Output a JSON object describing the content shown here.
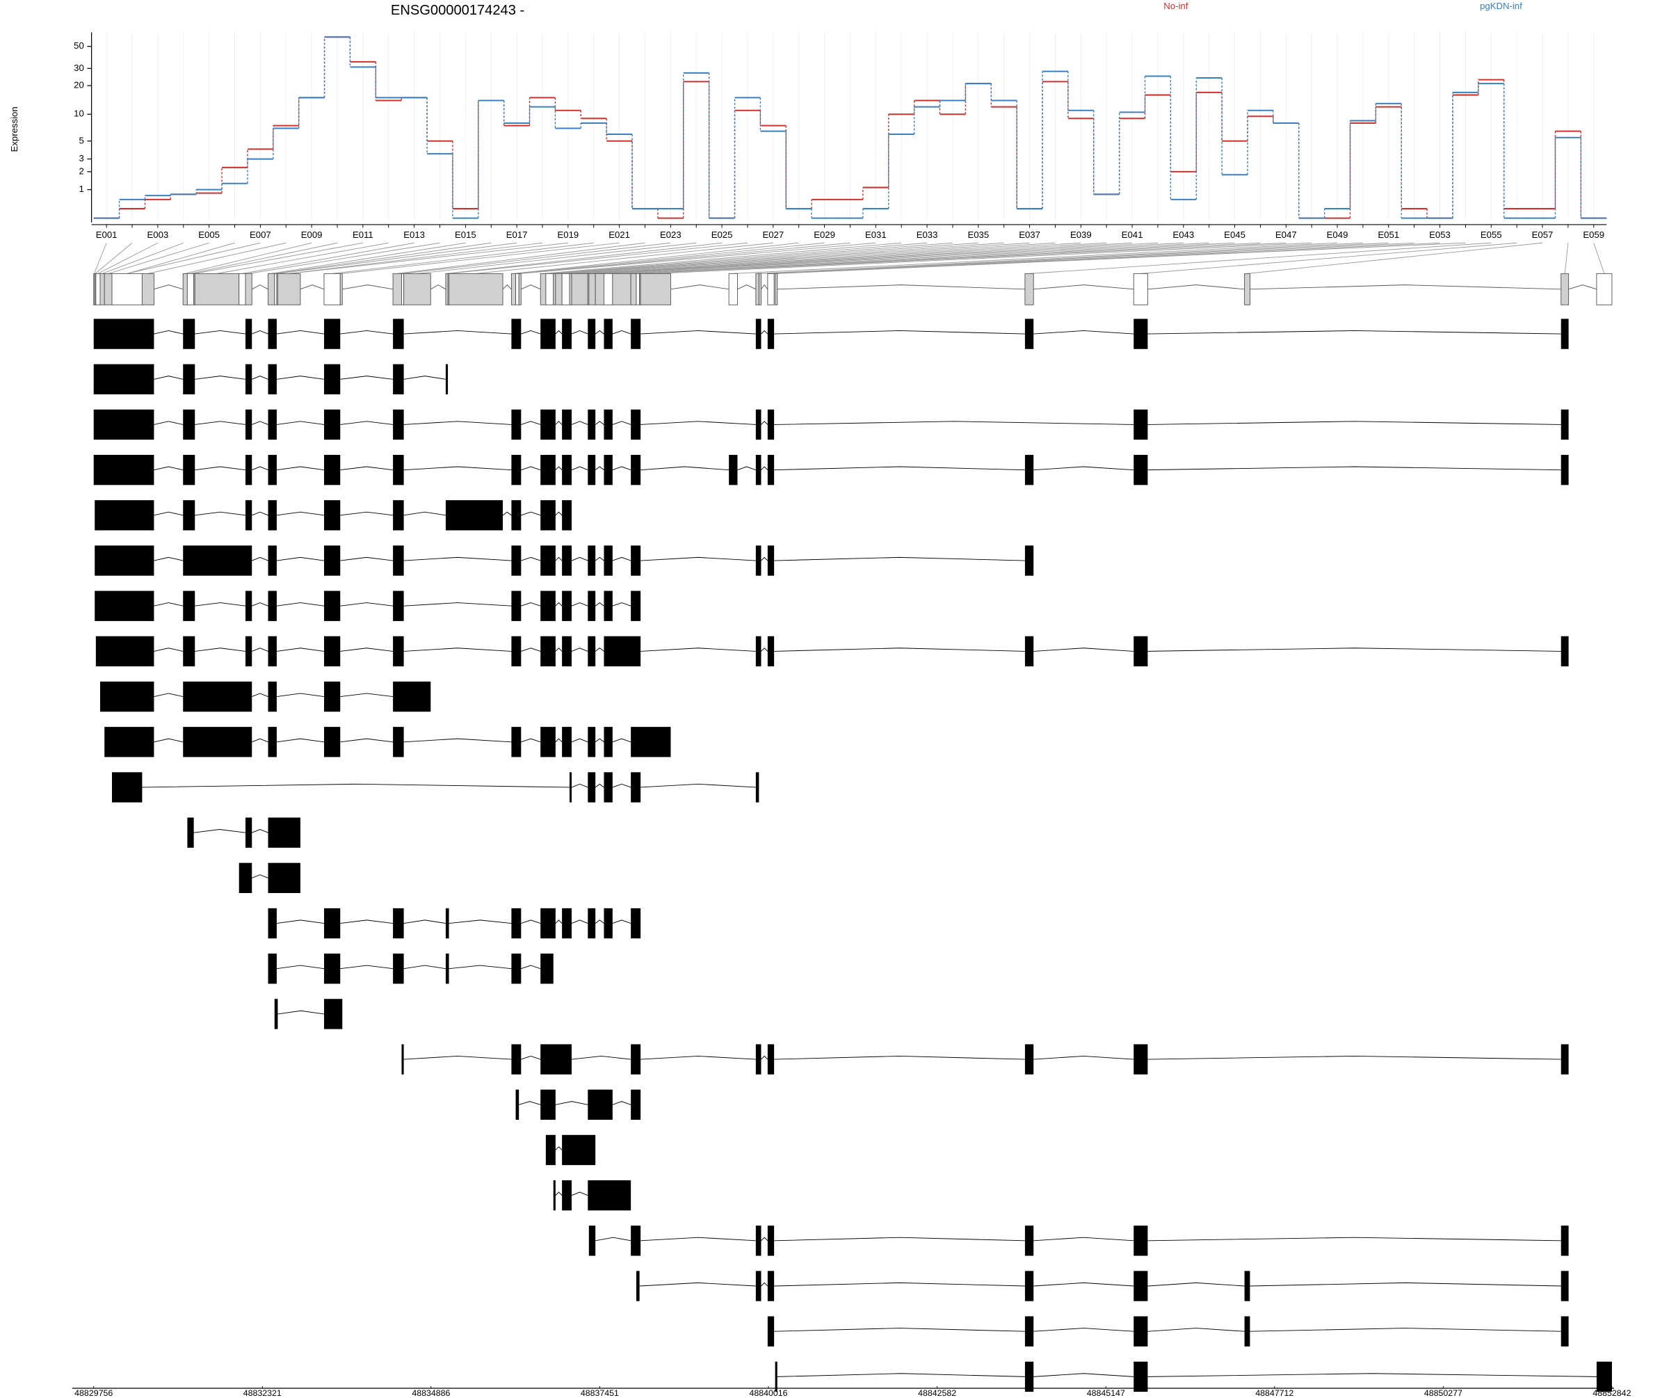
{
  "chart_data": {
    "type": "line",
    "title": "ENSG00000174243 -",
    "y_label": "Expression",
    "yscale": "log1p",
    "ylim": [
      0,
      69
    ],
    "yticks": [
      1,
      2,
      3,
      5,
      10,
      20,
      30,
      50
    ],
    "grid": true,
    "categories": [
      "E001",
      null,
      "E003",
      null,
      "E005",
      null,
      "E007",
      null,
      "E009",
      null,
      "E011",
      null,
      "E013",
      null,
      "E015",
      null,
      "E017",
      null,
      "E019",
      null,
      "E021",
      null,
      "E023",
      null,
      "E025",
      null,
      "E027",
      null,
      "E029",
      null,
      "E031",
      null,
      "E033",
      null,
      "E035",
      null,
      "E037",
      null,
      "E039",
      null,
      "E041",
      null,
      "E043",
      null,
      "E045",
      null,
      "E047",
      null,
      "E049",
      null,
      "E051",
      null,
      "E053",
      null,
      "E055",
      null,
      "E057",
      null,
      "E059"
    ],
    "series": [
      {
        "name": "No-inf",
        "color": "#d0312d",
        "values": [
          0.05,
          0.3,
          0.6,
          0.8,
          0.85,
          2.3,
          4,
          7.5,
          15,
          62,
          35,
          14,
          15,
          5,
          0.3,
          14,
          7.5,
          15,
          11,
          9,
          5,
          0.3,
          0.05,
          22,
          0.05,
          11,
          7.5,
          0.3,
          0.6,
          0.6,
          1.1,
          10,
          14,
          10,
          21,
          12,
          0.3,
          22,
          9,
          0.8,
          9,
          16,
          2,
          17,
          5,
          9.5,
          8,
          0.05,
          0.05,
          8,
          12,
          0.3,
          0.05,
          16,
          23,
          0.3,
          0.3,
          6.5,
          0.05
        ]
      },
      {
        "name": "pgKDN-inf",
        "color": "#3a80c0",
        "values": [
          0.05,
          0.6,
          0.75,
          0.8,
          1.0,
          1.3,
          3,
          7,
          15,
          62,
          31,
          15,
          15,
          3.5,
          0.05,
          14,
          8,
          12,
          7,
          8,
          6,
          0.3,
          0.3,
          27,
          0.05,
          15,
          6.5,
          0.3,
          0.05,
          0.05,
          0.3,
          6,
          12,
          14,
          21,
          14,
          0.3,
          28,
          11,
          0.8,
          10.5,
          25,
          0.6,
          24,
          1.8,
          11,
          8,
          0.05,
          0.3,
          8.5,
          13,
          0.05,
          0.05,
          17,
          21,
          0.05,
          0.05,
          5.5,
          0.05
        ]
      }
    ],
    "xlim": [
      48829756,
      48852842
    ],
    "xticks": [
      48829756,
      48832321,
      48834886,
      48837451,
      48840016,
      48842582,
      48845147,
      48847712,
      48850277,
      48852842
    ],
    "transcripts": [
      [
        [
          48829756,
          48830673
        ],
        [
          48831115,
          48831295
        ],
        [
          48832064,
          48832162
        ],
        [
          48832408,
          48832539
        ],
        [
          48833259,
          48833505
        ],
        [
          48834307,
          48834471
        ],
        [
          48836108,
          48836255
        ],
        [
          48836550,
          48836779
        ],
        [
          48836877,
          48837024
        ],
        [
          48837270,
          48837385
        ],
        [
          48837515,
          48837646
        ],
        [
          48837924,
          48838072
        ],
        [
          48839824,
          48839905
        ],
        [
          48840004,
          48840102
        ],
        [
          48843917,
          48844047
        ],
        [
          48845570,
          48845783
        ],
        [
          48852068,
          48852183
        ]
      ],
      [
        [
          48829756,
          48830673
        ],
        [
          48831115,
          48831295
        ],
        [
          48832064,
          48832162
        ],
        [
          48832408,
          48832539
        ],
        [
          48833259,
          48833505
        ],
        [
          48834307,
          48834471
        ],
        [
          48835109,
          48835142
        ]
      ],
      [
        [
          48829756,
          48830673
        ],
        [
          48831115,
          48831295
        ],
        [
          48832064,
          48832162
        ],
        [
          48832408,
          48832539
        ],
        [
          48833259,
          48833505
        ],
        [
          48834307,
          48834471
        ],
        [
          48836108,
          48836255
        ],
        [
          48836550,
          48836779
        ],
        [
          48836877,
          48837024
        ],
        [
          48837270,
          48837385
        ],
        [
          48837515,
          48837646
        ],
        [
          48837924,
          48838072
        ],
        [
          48839824,
          48839905
        ],
        [
          48840004,
          48840102
        ],
        [
          48845570,
          48845783
        ],
        [
          48852068,
          48852183
        ]
      ],
      [
        [
          48829756,
          48830673
        ],
        [
          48831115,
          48831295
        ],
        [
          48832064,
          48832162
        ],
        [
          48832408,
          48832539
        ],
        [
          48833259,
          48833505
        ],
        [
          48834307,
          48834471
        ],
        [
          48836108,
          48836255
        ],
        [
          48836550,
          48836779
        ],
        [
          48836877,
          48837024
        ],
        [
          48837270,
          48837385
        ],
        [
          48837515,
          48837646
        ],
        [
          48837924,
          48838072
        ],
        [
          48839415,
          48839545
        ],
        [
          48839824,
          48839905
        ],
        [
          48840004,
          48840102
        ],
        [
          48843917,
          48844047
        ],
        [
          48845570,
          48845783
        ],
        [
          48852068,
          48852183
        ]
      ],
      [
        [
          48829772,
          48830673
        ],
        [
          48831115,
          48831295
        ],
        [
          48832064,
          48832162
        ],
        [
          48832408,
          48832539
        ],
        [
          48833259,
          48833505
        ],
        [
          48834307,
          48834471
        ],
        [
          48835109,
          48835977
        ],
        [
          48836108,
          48836255
        ],
        [
          48836550,
          48836779
        ],
        [
          48836877,
          48837024
        ]
      ],
      [
        [
          48829772,
          48830673
        ],
        [
          48831115,
          48832162
        ],
        [
          48832408,
          48832539
        ],
        [
          48833259,
          48833505
        ],
        [
          48834307,
          48834471
        ],
        [
          48836108,
          48836255
        ],
        [
          48836550,
          48836779
        ],
        [
          48836877,
          48837024
        ],
        [
          48837270,
          48837385
        ],
        [
          48837515,
          48837646
        ],
        [
          48837924,
          48838072
        ],
        [
          48839824,
          48839905
        ],
        [
          48840004,
          48840102
        ],
        [
          48843917,
          48844047
        ]
      ],
      [
        [
          48829772,
          48830673
        ],
        [
          48831115,
          48831295
        ],
        [
          48832064,
          48832162
        ],
        [
          48832408,
          48832539
        ],
        [
          48833259,
          48833505
        ],
        [
          48834307,
          48834471
        ],
        [
          48836108,
          48836255
        ],
        [
          48836550,
          48836779
        ],
        [
          48836877,
          48837024
        ],
        [
          48837270,
          48837385
        ],
        [
          48837515,
          48837646
        ],
        [
          48837924,
          48838072
        ]
      ],
      [
        [
          48829789,
          48830673
        ],
        [
          48831115,
          48831295
        ],
        [
          48832064,
          48832162
        ],
        [
          48832408,
          48832539
        ],
        [
          48833259,
          48833505
        ],
        [
          48834307,
          48834471
        ],
        [
          48836108,
          48836255
        ],
        [
          48836550,
          48836779
        ],
        [
          48836877,
          48837024
        ],
        [
          48837270,
          48837385
        ],
        [
          48837515,
          48838072
        ],
        [
          48839824,
          48839905
        ],
        [
          48840004,
          48840102
        ],
        [
          48843917,
          48844047
        ],
        [
          48845570,
          48845783
        ],
        [
          48852068,
          48852183
        ]
      ],
      [
        [
          48829854,
          48830673
        ],
        [
          48831115,
          48832162
        ],
        [
          48832408,
          48832539
        ],
        [
          48833259,
          48833505
        ],
        [
          48834307,
          48834880
        ]
      ],
      [
        [
          48829920,
          48830673
        ],
        [
          48831115,
          48832162
        ],
        [
          48832408,
          48832539
        ],
        [
          48833259,
          48833505
        ],
        [
          48834307,
          48834471
        ],
        [
          48836108,
          48836255
        ],
        [
          48836550,
          48836779
        ],
        [
          48836877,
          48837024
        ],
        [
          48837270,
          48837385
        ],
        [
          48837515,
          48837646
        ],
        [
          48837924,
          48838530
        ]
      ],
      [
        [
          48830034,
          48830493
        ],
        [
          48836992,
          48837024
        ],
        [
          48837270,
          48837385
        ],
        [
          48837515,
          48837646
        ],
        [
          48837924,
          48838072
        ],
        [
          48839824,
          48839872
        ]
      ],
      [
        [
          48831180,
          48831278
        ],
        [
          48832064,
          48832162
        ],
        [
          48832408,
          48832899
        ]
      ],
      [
        [
          48831966,
          48832162
        ],
        [
          48832408,
          48832899
        ]
      ],
      [
        [
          48832408,
          48832539
        ],
        [
          48833259,
          48833505
        ],
        [
          48834307,
          48834471
        ],
        [
          48835109,
          48835158
        ],
        [
          48836108,
          48836255
        ],
        [
          48836550,
          48836779
        ],
        [
          48836877,
          48837024
        ],
        [
          48837270,
          48837385
        ],
        [
          48837515,
          48837646
        ],
        [
          48837924,
          48838072
        ]
      ],
      [
        [
          48832408,
          48832539
        ],
        [
          48833259,
          48833505
        ],
        [
          48834307,
          48834471
        ],
        [
          48835109,
          48835158
        ],
        [
          48836108,
          48836255
        ],
        [
          48836550,
          48836746
        ]
      ],
      [
        [
          48832506,
          48832555
        ],
        [
          48833259,
          48833537
        ]
      ],
      [
        [
          48834438,
          48834471
        ],
        [
          48836108,
          48836255
        ],
        [
          48836550,
          48837024
        ],
        [
          48837924,
          48838072
        ],
        [
          48839824,
          48839905
        ],
        [
          48840004,
          48840102
        ],
        [
          48843917,
          48844047
        ],
        [
          48845570,
          48845783
        ],
        [
          48852068,
          48852183
        ]
      ],
      [
        [
          48836173,
          48836222
        ],
        [
          48836550,
          48836779
        ],
        [
          48837270,
          48837646
        ],
        [
          48837924,
          48838072
        ]
      ],
      [
        [
          48836631,
          48836779
        ],
        [
          48836877,
          48837385
        ]
      ],
      [
        [
          48836746,
          48836779
        ],
        [
          48836877,
          48837024
        ],
        [
          48837270,
          48837924
        ]
      ],
      [
        [
          48837286,
          48837385
        ],
        [
          48837924,
          48838072
        ],
        [
          48839824,
          48839905
        ],
        [
          48840004,
          48840102
        ],
        [
          48843917,
          48844047
        ],
        [
          48845570,
          48845783
        ],
        [
          48852068,
          48852183
        ]
      ],
      [
        [
          48838007,
          48838056
        ],
        [
          48839824,
          48839905
        ],
        [
          48840004,
          48840102
        ],
        [
          48843917,
          48844047
        ],
        [
          48845570,
          48845783
        ],
        [
          48847255,
          48847338
        ],
        [
          48852068,
          48852183
        ]
      ],
      [
        [
          48840004,
          48840102
        ],
        [
          48843917,
          48844047
        ],
        [
          48845570,
          48845783
        ],
        [
          48847255,
          48847338
        ],
        [
          48852068,
          48852183
        ]
      ],
      [
        [
          48840118,
          48840151
        ],
        [
          48843917,
          48844047
        ],
        [
          48845570,
          48845783
        ],
        [
          48852609,
          48852842
        ]
      ]
    ]
  }
}
